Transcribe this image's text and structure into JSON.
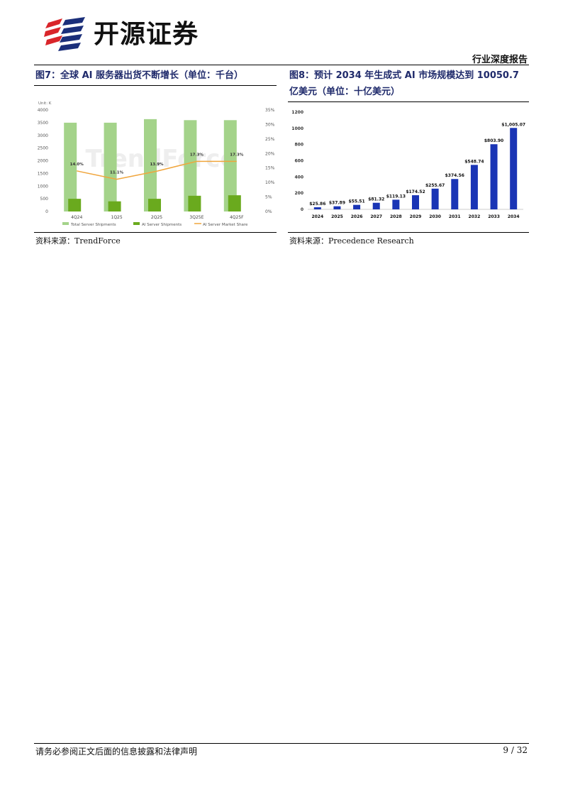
{
  "header": {
    "brand_name": "开源证券",
    "report_type": "行业深度报告"
  },
  "figure7": {
    "title": "图7：全球 AI 服务器出货不断增长（单位：千台）",
    "source": "资料来源：TrendForce",
    "watermark": "TrendForce"
  },
  "figure8": {
    "title": "图8：预计 2034 年生成式 AI 市场规模达到 10050.7 亿美元（单位：十亿美元）",
    "source": "资料来源：Precedence Research"
  },
  "footer": {
    "disclaimer": "请务必参阅正文后面的信息披露和法律声明",
    "page": "9 / 32"
  },
  "chart_data": [
    {
      "type": "bar",
      "unit_label": "Unit: K",
      "categories": [
        "4Q24",
        "1Q25",
        "2Q25",
        "3Q25E",
        "4Q25F"
      ],
      "series": [
        {
          "name": "Total Server Shipments",
          "type": "bar",
          "axis": "left",
          "color": "#a4d38a",
          "values": [
            3500,
            3500,
            3640,
            3600,
            3600
          ]
        },
        {
          "name": "AI Server Shipments",
          "type": "bar",
          "axis": "left",
          "color": "#6aaa1e",
          "values": [
            500,
            400,
            500,
            620,
            640
          ]
        },
        {
          "name": "AI Server Market Share",
          "type": "line",
          "axis": "right",
          "color": "#f0a53c",
          "values": [
            14.0,
            11.1,
            13.9,
            17.3,
            17.3
          ],
          "labels": [
            "14.0%",
            "11.1%",
            "13.9%",
            "17.3%",
            "17.3%"
          ]
        }
      ],
      "ylim": [
        0,
        4000
      ],
      "yticks": [
        "0",
        "500",
        "1000",
        "1500",
        "2000",
        "2500",
        "3000",
        "3500",
        "4000"
      ],
      "y2lim": [
        0,
        35
      ],
      "y2ticks": [
        "0%",
        "5%",
        "10%",
        "15%",
        "20%",
        "25%",
        "30%",
        "35%"
      ],
      "legend_position": "bottom"
    },
    {
      "type": "bar",
      "categories": [
        "2024",
        "2025",
        "2026",
        "2027",
        "2028",
        "2029",
        "2030",
        "2031",
        "2032",
        "2033",
        "2034"
      ],
      "values": [
        25.86,
        37.89,
        55.51,
        81.32,
        119.13,
        174.52,
        255.67,
        374.56,
        548.74,
        803.9,
        1005.07
      ],
      "labels": [
        "$25.86",
        "$37.89",
        "$55.51",
        "$81.32",
        "$119.13",
        "$174.52",
        "$255.67",
        "$374.56",
        "$548.74",
        "$803.90",
        "$1,005.07"
      ],
      "color": "#1a35b5",
      "ylim": [
        0,
        1200
      ],
      "yticks": [
        "0",
        "200",
        "400",
        "600",
        "800",
        "1000",
        "1200"
      ]
    }
  ]
}
